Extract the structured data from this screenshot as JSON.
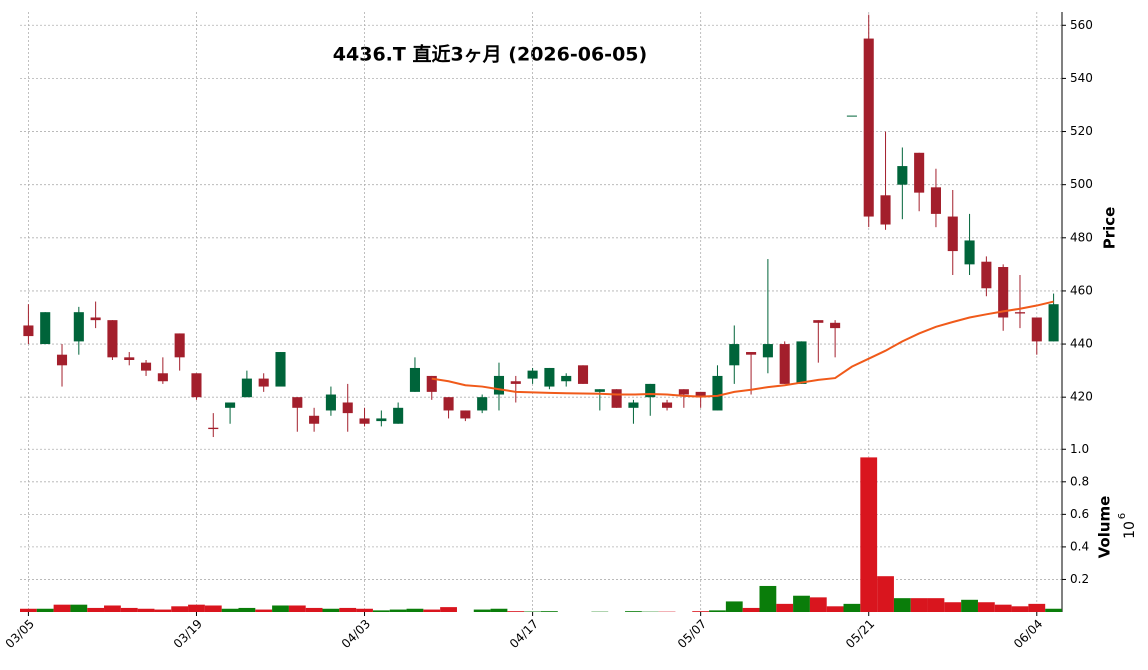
{
  "chart_data": {
    "type": "candlestick",
    "title": "4436.T 直近3ヶ月 (2026-06-05)",
    "ylabel": "Price",
    "categories": [
      "03/05",
      null,
      null,
      null,
      null,
      null,
      null,
      null,
      null,
      null,
      "03/19",
      null,
      null,
      null,
      null,
      null,
      null,
      null,
      null,
      null,
      "04/03",
      null,
      null,
      null,
      null,
      null,
      null,
      null,
      null,
      null,
      "04/17",
      null,
      null,
      null,
      null,
      null,
      null,
      null,
      null,
      null,
      "05/07",
      null,
      null,
      null,
      null,
      null,
      null,
      null,
      null,
      null,
      "05/21",
      null,
      null,
      null,
      null,
      null,
      null,
      null,
      null,
      null,
      "06/04",
      null
    ],
    "open": [
      447,
      440,
      436,
      441,
      450,
      449,
      435,
      433,
      429,
      444,
      429,
      408.5,
      416,
      420,
      427,
      424,
      420,
      413,
      415,
      418,
      412,
      411,
      410,
      422,
      428,
      420,
      415,
      415,
      421,
      426,
      427,
      424,
      426,
      432,
      422,
      423,
      416,
      420,
      418,
      423,
      422,
      415,
      432,
      437,
      435,
      440,
      425,
      449,
      448,
      526,
      555,
      496,
      500,
      512,
      499,
      488,
      470,
      471,
      469,
      452,
      450,
      441
    ],
    "high": [
      455,
      452,
      440,
      454,
      456,
      449,
      437,
      434,
      435,
      444,
      429,
      414,
      418,
      430,
      429,
      437,
      420,
      416,
      424,
      425,
      416,
      415,
      418,
      435,
      428,
      420,
      415,
      421,
      433,
      428,
      431,
      431,
      429,
      432,
      423,
      423,
      419,
      425,
      419,
      423,
      422,
      432,
      447,
      437,
      472,
      441,
      441,
      449,
      449,
      526,
      564,
      520,
      514,
      512,
      506,
      498,
      489,
      473,
      470,
      466,
      450,
      459
    ],
    "low": [
      440,
      440,
      424,
      436,
      446,
      434,
      432,
      428,
      425,
      430,
      419,
      405,
      410,
      420,
      422,
      424,
      407,
      407,
      413,
      407,
      409,
      409,
      410,
      422,
      419,
      412,
      411,
      414,
      415,
      418,
      425,
      423,
      424,
      425,
      415,
      416,
      410,
      413,
      415,
      416,
      416,
      415,
      425,
      421,
      429,
      425,
      425,
      433,
      435,
      526,
      484,
      483,
      487,
      490,
      484,
      466,
      466,
      458,
      445,
      446,
      436,
      441
    ],
    "close": [
      443,
      452,
      432,
      452,
      449,
      435,
      434,
      430,
      426,
      435,
      420,
      408,
      418,
      427,
      424,
      437,
      416,
      410,
      421,
      414,
      410,
      412,
      416,
      431,
      422,
      415,
      412,
      420,
      428,
      425,
      430,
      431,
      428,
      425,
      423,
      416,
      418,
      425,
      416,
      421,
      420,
      428,
      440,
      436,
      440,
      425,
      441,
      448,
      446,
      526,
      488,
      485,
      507,
      497,
      489,
      475,
      479,
      461,
      450,
      451.5,
      441,
      455
    ],
    "up_color": "#00643a",
    "down_color": "#a31f2c",
    "ylim": [
      402,
      565
    ],
    "yticks": [
      420,
      440,
      460,
      480,
      500,
      520,
      540,
      560
    ],
    "grid": true,
    "moving_average": {
      "color": "#f05a1a",
      "values": [
        null,
        null,
        null,
        null,
        null,
        null,
        null,
        null,
        null,
        null,
        null,
        null,
        null,
        null,
        null,
        null,
        null,
        null,
        null,
        null,
        null,
        null,
        null,
        null,
        427,
        426,
        424.5,
        424,
        423,
        422,
        421.8,
        421.6,
        421.5,
        421.4,
        421.3,
        421,
        421,
        421.2,
        421,
        420.5,
        420.2,
        420.5,
        422,
        422.8,
        423.8,
        424.5,
        425.5,
        426.5,
        427.2,
        431.5,
        434.5,
        437.5,
        441,
        444,
        446.5,
        448.3,
        450,
        451.2,
        452.3,
        453.3,
        454.5,
        456
      ]
    },
    "volume": {
      "ylabel": "Volume",
      "scale_base": "10",
      "scale_exponent": "6",
      "up_color": "#0a7d0a",
      "down_color": "#d9151e",
      "ylim": [
        0,
        1.02
      ],
      "yticks": [
        0.2,
        0.4,
        0.6,
        0.8,
        {
          "value": 1,
          "label": "1.0"
        }
      ],
      "values": [
        0.02,
        0.02,
        0.045,
        0.045,
        0.025,
        0.04,
        0.025,
        0.02,
        0.015,
        0.035,
        0.045,
        0.04,
        0.02,
        0.025,
        0.015,
        0.04,
        0.04,
        0.025,
        0.02,
        0.025,
        0.02,
        0.01,
        0.015,
        0.02,
        0.015,
        0.03,
        0,
        0.015,
        0.02,
        0.005,
        0.003,
        0.005,
        0,
        0,
        0.002,
        0,
        0.005,
        0.002,
        0.002,
        0,
        0.005,
        0.01,
        0.065,
        0.025,
        0.16,
        0.05,
        0.1,
        0.09,
        0.035,
        0.05,
        0.95,
        0.22,
        0.085,
        0.085,
        0.085,
        0.06,
        0.075,
        0.06,
        0.045,
        0.035,
        0.05,
        0.02
      ]
    }
  }
}
